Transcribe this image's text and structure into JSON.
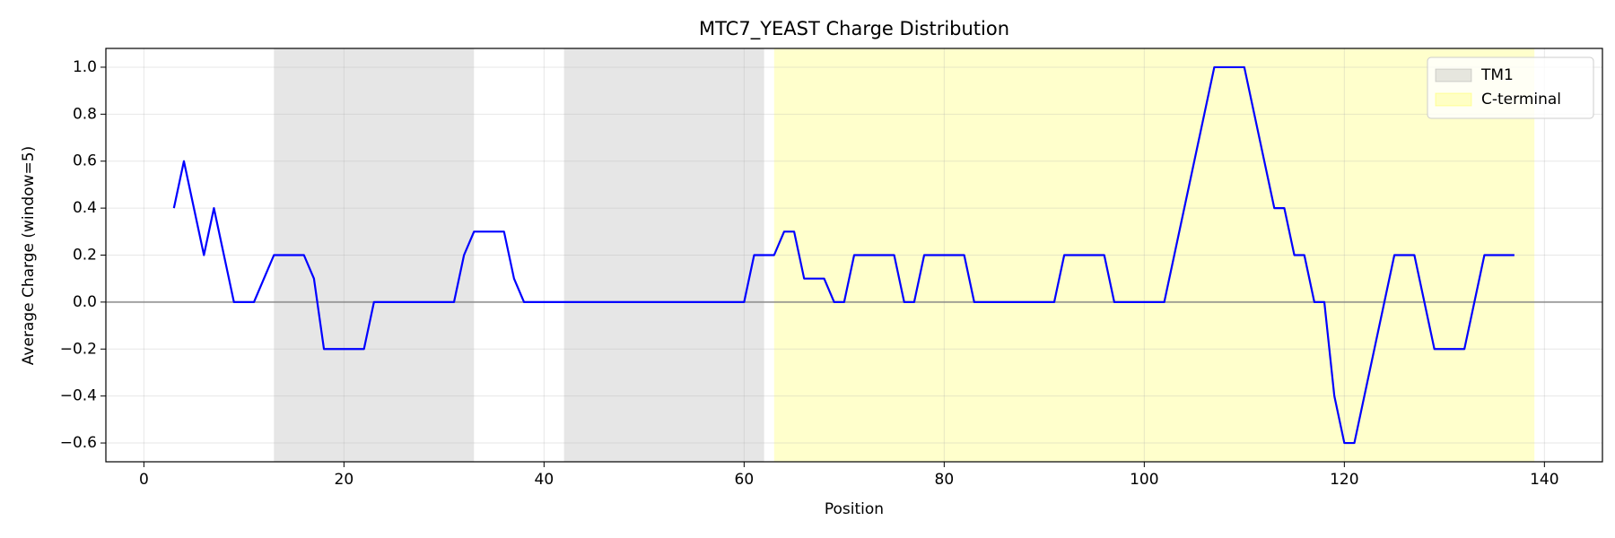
{
  "chart_data": {
    "type": "line",
    "title": "MTC7_YEAST Charge Distribution",
    "xlabel": "Position",
    "ylabel": "Average Charge (window=5)",
    "x": [
      3,
      4,
      5,
      6,
      7,
      8,
      9,
      10,
      11,
      12,
      13,
      14,
      15,
      16,
      17,
      18,
      19,
      20,
      21,
      22,
      23,
      24,
      25,
      26,
      27,
      28,
      29,
      30,
      31,
      32,
      33,
      34,
      35,
      36,
      37,
      38,
      39,
      40,
      41,
      42,
      43,
      44,
      45,
      46,
      47,
      48,
      49,
      50,
      51,
      52,
      53,
      54,
      55,
      56,
      57,
      58,
      59,
      60,
      61,
      62,
      63,
      64,
      65,
      66,
      67,
      68,
      69,
      70,
      71,
      72,
      73,
      74,
      75,
      76,
      77,
      78,
      79,
      80,
      81,
      82,
      83,
      84,
      85,
      86,
      87,
      88,
      89,
      90,
      91,
      92,
      93,
      94,
      95,
      96,
      97,
      98,
      99,
      100,
      101,
      102,
      103,
      104,
      105,
      106,
      107,
      108,
      109,
      110,
      111,
      112,
      113,
      114,
      115,
      116,
      117,
      118,
      119,
      120,
      121,
      122,
      123,
      124,
      125,
      126,
      127,
      128,
      129,
      130,
      131,
      132,
      133,
      134,
      135,
      136,
      137
    ],
    "values": [
      0.4,
      0.6,
      0.4,
      0.2,
      0.4,
      0.2,
      0,
      0,
      0,
      0.1,
      0.2,
      0.2,
      0.2,
      0.2,
      0.1,
      -0.2,
      -0.2,
      -0.2,
      -0.2,
      -0.2,
      0,
      0,
      0,
      0,
      0,
      0,
      0,
      0,
      0,
      0.2,
      0.3,
      0.3,
      0.3,
      0.3,
      0.1,
      0,
      0,
      0,
      0,
      0,
      0,
      0,
      0,
      0,
      0,
      0,
      0,
      0,
      0,
      0,
      0,
      0,
      0,
      0,
      0,
      0,
      0,
      0,
      0.2,
      0.2,
      0.2,
      0.3,
      0.3,
      0.1,
      0.1,
      0.1,
      0,
      0,
      0.2,
      0.2,
      0.2,
      0.2,
      0.2,
      0,
      0,
      0.2,
      0.2,
      0.2,
      0.2,
      0.2,
      0,
      0,
      0,
      0,
      0,
      0,
      0,
      0,
      0,
      0.2,
      0.2,
      0.2,
      0.2,
      0.2,
      0,
      0,
      0,
      0,
      0,
      0,
      0.2,
      0.4,
      0.6,
      0.8,
      1,
      1,
      1,
      1,
      0.8,
      0.6,
      0.4,
      0.4,
      0.2,
      0.2,
      0,
      0,
      -0.4,
      -0.6,
      -0.6,
      -0.4,
      -0.2,
      0,
      0.2,
      0.2,
      0.2,
      0,
      -0.2,
      -0.2,
      -0.2,
      -0.2,
      0,
      0.2,
      0.2,
      0.2,
      0.2
    ],
    "color": "#0000ff",
    "regions": [
      {
        "name": "TM1",
        "start": 13,
        "end": 33,
        "color": "#808080"
      },
      {
        "name": null,
        "start": 42,
        "end": 62,
        "color": "#808080"
      },
      {
        "name": "C-terminal",
        "start": 63,
        "end": 139,
        "color": "#ffff00"
      }
    ],
    "hline": 0,
    "xlim": [
      -3.8,
      145.8
    ],
    "ylim": [
      -0.68,
      1.08
    ],
    "xticks": [
      0,
      20,
      40,
      60,
      80,
      100,
      120,
      140
    ],
    "yticks": [
      {
        "value": -0.6,
        "label": "−0.6"
      },
      {
        "value": -0.4,
        "label": "−0.4"
      },
      {
        "value": -0.2,
        "label": "−0.2"
      },
      {
        "value": 0,
        "label": "0.0"
      },
      {
        "value": 0.2,
        "label": "0.2"
      },
      {
        "value": 0.4,
        "label": "0.4"
      },
      {
        "value": 0.6,
        "label": "0.6"
      },
      {
        "value": 0.8,
        "label": "0.8"
      },
      {
        "value": 1.0,
        "label": "1.0"
      }
    ],
    "grid": true,
    "legend": "upper right"
  }
}
